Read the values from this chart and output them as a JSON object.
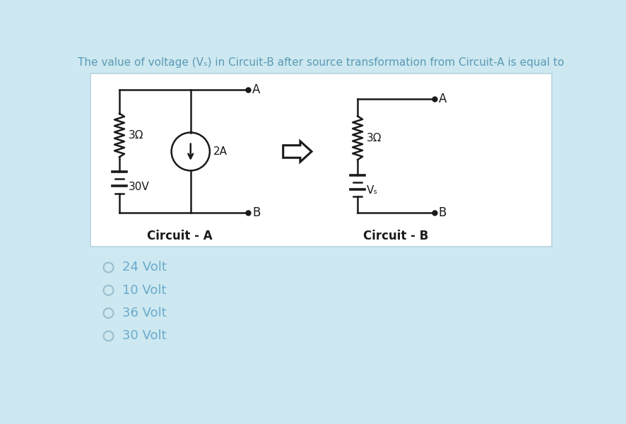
{
  "title": "The value of voltage (Vₛ) in Circuit-B after source transformation from Circuit-A is equal to",
  "title_color": "#5a9ab5",
  "bg_color": "#cde8f0",
  "panel_bg": "#ffffff",
  "panel_edge": "#b8d4de",
  "options": [
    "24 Volt",
    "10 Volt",
    "36 Volt",
    "30 Volt"
  ],
  "option_color": "#6aabcc",
  "circuit_a_label": "Circuit - A",
  "circuit_b_label": "Circuit - B",
  "line_color": "#1a1a1a",
  "lw": 1.8
}
